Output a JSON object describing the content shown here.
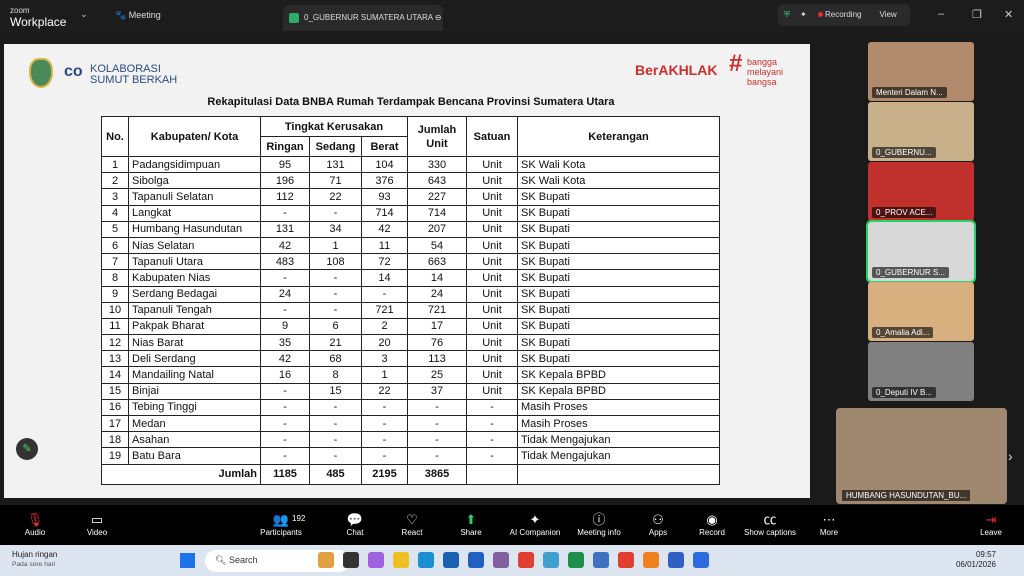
{
  "window": {
    "brand_small": "zoom",
    "brand": "Workplace",
    "meeting_menu": "Meeting",
    "active_tab": "0_GUBERNUR SUMATERA UTARA",
    "recording": "Recording",
    "view": "View"
  },
  "slide": {
    "logo_text": [
      "KOLABORASI",
      "SUMUT BERKAH"
    ],
    "berakhlak": "BerAKHLAK",
    "bangga": [
      "bangga",
      "melayani",
      "bangsa"
    ],
    "title": "Rekapitulasi Data BNBA Rumah Terdampak Bencana Provinsi Sumatera Utara",
    "headers": {
      "no": "No.",
      "kab": "Kabupaten/ Kota",
      "tingkat": "Tingkat Kerusakan",
      "ringan": "Ringan",
      "sedang": "Sedang",
      "berat": "Berat",
      "jumlah": "Jumlah Unit",
      "satuan": "Satuan",
      "ket": "Keterangan"
    },
    "rows": [
      [
        "1",
        "Padangsidimpuan",
        "95",
        "131",
        "104",
        "330",
        "Unit",
        "SK Wali Kota"
      ],
      [
        "2",
        "Sibolga",
        "196",
        "71",
        "376",
        "643",
        "Unit",
        "SK Wali Kota"
      ],
      [
        "3",
        "Tapanuli Selatan",
        "112",
        "22",
        "93",
        "227",
        "Unit",
        "SK Bupati"
      ],
      [
        "4",
        "Langkat",
        "-",
        "-",
        "714",
        "714",
        "Unit",
        "SK Bupati"
      ],
      [
        "5",
        "Humbang Hasundutan",
        "131",
        "34",
        "42",
        "207",
        "Unit",
        "SK Bupati"
      ],
      [
        "6",
        "Nias Selatan",
        "42",
        "1",
        "11",
        "54",
        "Unit",
        "SK Bupati"
      ],
      [
        "7",
        "Tapanuli Utara",
        "483",
        "108",
        "72",
        "663",
        "Unit",
        "SK Bupati"
      ],
      [
        "8",
        "Kabupaten Nias",
        "-",
        "-",
        "14",
        "14",
        "Unit",
        "SK Bupati"
      ],
      [
        "9",
        "Serdang Bedagai",
        "24",
        "-",
        "-",
        "24",
        "Unit",
        "SK Bupati"
      ],
      [
        "10",
        "Tapanuli Tengah",
        "-",
        "-",
        "721",
        "721",
        "Unit",
        "SK Bupati"
      ],
      [
        "11",
        "Pakpak Bharat",
        "9",
        "6",
        "2",
        "17",
        "Unit",
        "SK Bupati"
      ],
      [
        "12",
        "Nias Barat",
        "35",
        "21",
        "20",
        "76",
        "Unit",
        "SK Bupati"
      ],
      [
        "13",
        "Deli Serdang",
        "42",
        "68",
        "3",
        "113",
        "Unit",
        "SK Bupati"
      ],
      [
        "14",
        "Mandailing Natal",
        "16",
        "8",
        "1",
        "25",
        "Unit",
        "SK Kepala BPBD"
      ],
      [
        "15",
        "Binjai",
        "-",
        "15",
        "22",
        "37",
        "Unit",
        "SK Kepala BPBD"
      ],
      [
        "16",
        "Tebing Tinggi",
        "-",
        "-",
        "-",
        "-",
        "-",
        "Masih Proses"
      ],
      [
        "17",
        "Medan",
        "-",
        "-",
        "-",
        "-",
        "-",
        "Masih Proses"
      ],
      [
        "18",
        "Asahan",
        "-",
        "-",
        "-",
        "-",
        "-",
        "Tidak Mengajukan"
      ],
      [
        "19",
        "Batu Bara",
        "-",
        "-",
        "-",
        "-",
        "-",
        "Tidak Mengajukan"
      ]
    ],
    "total": {
      "label": "Jumlah",
      "ringan": "1185",
      "sedang": "485",
      "berat": "2195",
      "jumlah": "3865"
    }
  },
  "participants": [
    "Menteri Dalam N...",
    "0_GUBERNU...",
    "0_PROV ACE...",
    "0_GUBERNUR S...",
    "0_Amalia Adi...",
    "0_Deputi IV B..."
  ],
  "spotlight": "HUMBANG HASUNDUTAN_BU...",
  "toolbar": {
    "audio": "Audio",
    "video": "Video",
    "participants": "Participants",
    "participants_count": "192",
    "chat": "Chat",
    "react": "React",
    "share": "Share",
    "ai": "AI Companion",
    "info": "Meeting info",
    "apps": "Apps",
    "record": "Record",
    "captions": "Show captions",
    "more": "More",
    "leave": "Leave"
  },
  "taskbar": {
    "weather": "Hujan ringan",
    "weather_sub": "Pada sore hari",
    "search": "Search",
    "time": "09:57",
    "date": "06/01/2026"
  }
}
